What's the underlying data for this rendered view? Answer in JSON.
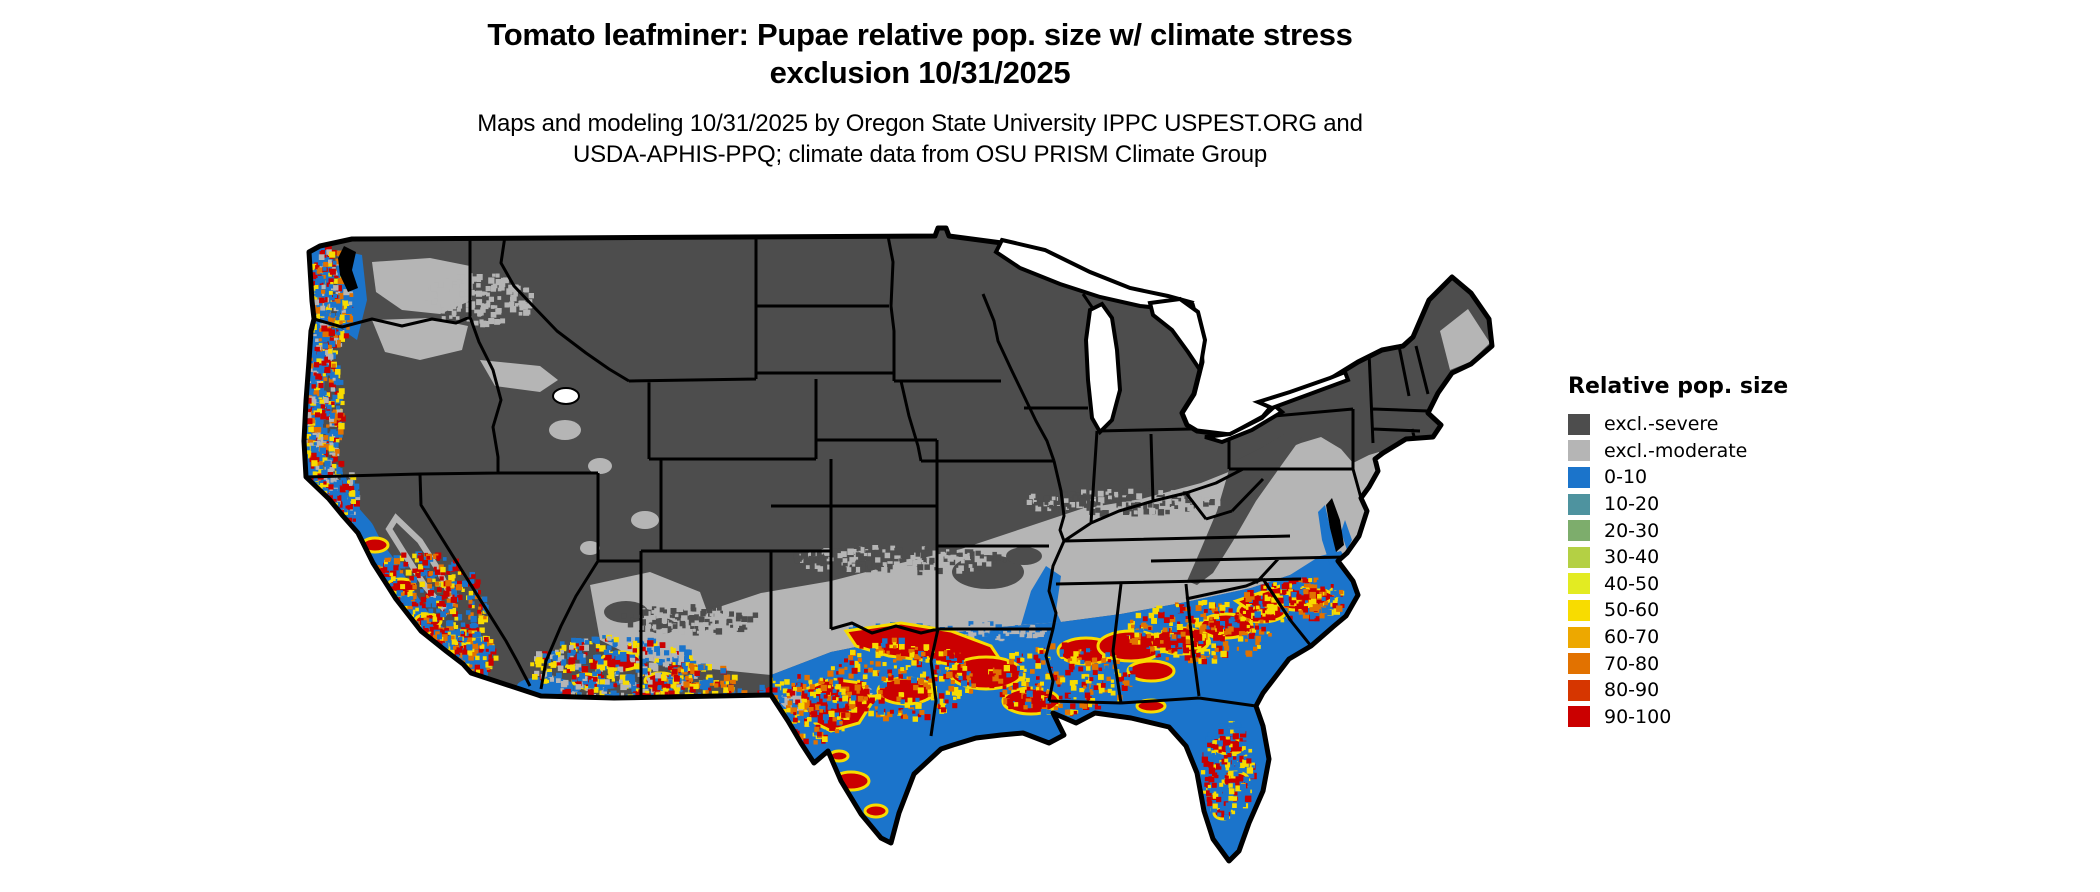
{
  "header": {
    "title_line1": "Tomato leafminer: Pupae relative pop. size w/ climate stress",
    "title_line2": "exclusion 10/31/2025",
    "subtitle_line1": "Maps and modeling 10/31/2025 by Oregon State University IPPC USPEST.ORG and",
    "subtitle_line2": "USDA-APHIS-PPQ; climate data from OSU PRISM Climate Group"
  },
  "legend": {
    "title": "Relative pop. size",
    "items": [
      {
        "key": "excl_severe",
        "label": "excl.-severe",
        "color": "#4D4D4D"
      },
      {
        "key": "excl_moderate",
        "label": "excl.-moderate",
        "color": "#B5B5B5"
      },
      {
        "key": "v0_10",
        "label": "0-10",
        "color": "#1B74CB"
      },
      {
        "key": "v10_20",
        "label": "10-20",
        "color": "#4E939F"
      },
      {
        "key": "v20_30",
        "label": "20-30",
        "color": "#7DAD6C"
      },
      {
        "key": "v30_40",
        "label": "30-40",
        "color": "#B4D044"
      },
      {
        "key": "v40_50",
        "label": "40-50",
        "color": "#E3EB22"
      },
      {
        "key": "v50_60",
        "label": "50-60",
        "color": "#F8DC00"
      },
      {
        "key": "v60_70",
        "label": "60-70",
        "color": "#EDA800"
      },
      {
        "key": "v70_80",
        "label": "70-80",
        "color": "#E27200"
      },
      {
        "key": "v80_90",
        "label": "80-90",
        "color": "#D63600"
      },
      {
        "key": "v90_100",
        "label": "90-100",
        "color": "#CB0000"
      }
    ]
  },
  "map": {
    "region": "Contiguous United States",
    "water_color": "#FFFFFF",
    "boundary_color": "#000000"
  }
}
